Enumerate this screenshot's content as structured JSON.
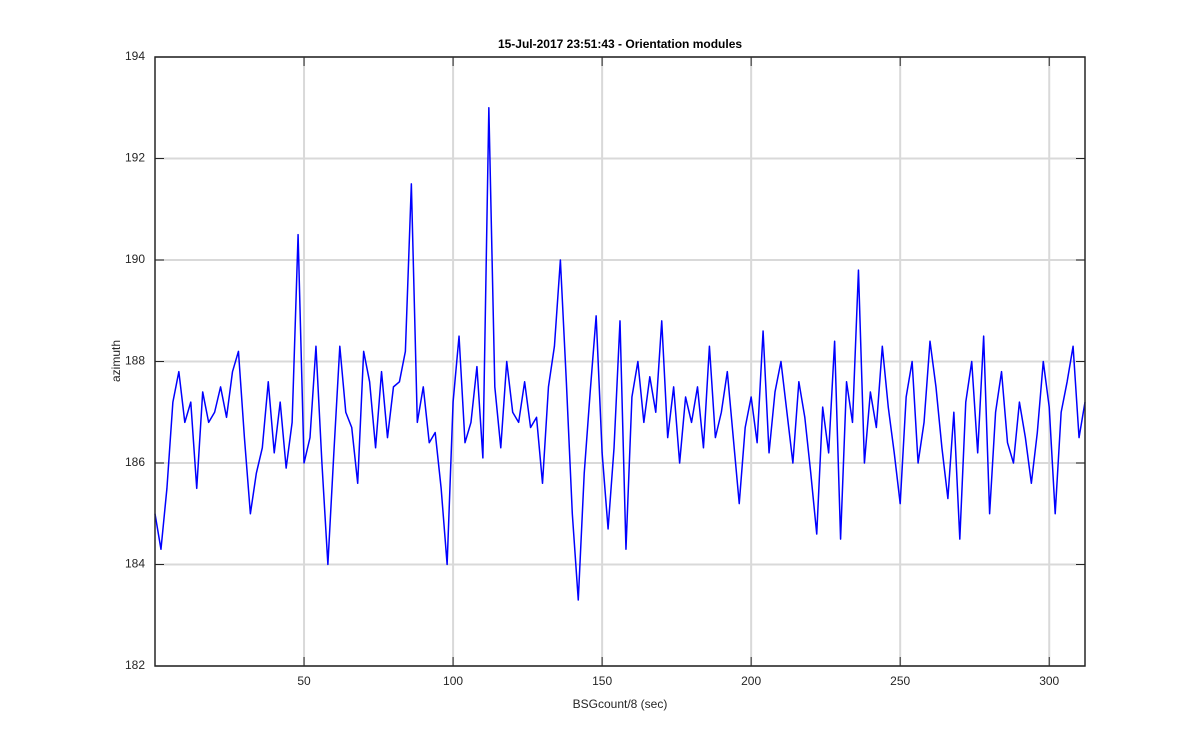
{
  "chart_data": {
    "type": "line",
    "title": "15-Jul-2017 23:51:43 - Orientation modules",
    "xlabel": "BSGcount/8 (sec)",
    "ylabel": "azimuth",
    "xlim": [
      0,
      312
    ],
    "ylim": [
      182,
      194
    ],
    "xticks": [
      50,
      100,
      150,
      200,
      250,
      300
    ],
    "yticks": [
      182,
      184,
      186,
      188,
      190,
      192,
      194
    ],
    "grid": true,
    "x": [
      0,
      2,
      4,
      6,
      8,
      10,
      12,
      14,
      16,
      18,
      20,
      22,
      24,
      26,
      28,
      30,
      32,
      34,
      36,
      38,
      40,
      42,
      44,
      46,
      48,
      50,
      52,
      54,
      56,
      58,
      60,
      62,
      64,
      66,
      68,
      70,
      72,
      74,
      76,
      78,
      80,
      82,
      84,
      86,
      88,
      90,
      92,
      94,
      96,
      98,
      100,
      102,
      104,
      106,
      108,
      110,
      112,
      114,
      116,
      118,
      120,
      122,
      124,
      126,
      128,
      130,
      132,
      134,
      136,
      138,
      140,
      142,
      144,
      146,
      148,
      150,
      152,
      154,
      156,
      158,
      160,
      162,
      164,
      166,
      168,
      170,
      172,
      174,
      176,
      178,
      180,
      182,
      184,
      186,
      188,
      190,
      192,
      194,
      196,
      198,
      200,
      202,
      204,
      206,
      208,
      210,
      212,
      214,
      216,
      218,
      220,
      222,
      224,
      226,
      228,
      230,
      232,
      234,
      236,
      238,
      240,
      242,
      244,
      246,
      248,
      250,
      252,
      254,
      256,
      258,
      260,
      262,
      264,
      266,
      268,
      270,
      272,
      274,
      276,
      278,
      280,
      282,
      284,
      286,
      288,
      290,
      292,
      294,
      296,
      298,
      300,
      302,
      304,
      306,
      308,
      310,
      312
    ],
    "series": [
      {
        "name": "azimuth",
        "color": "#0000ff",
        "values": [
          185.0,
          184.3,
          185.5,
          187.2,
          187.8,
          186.8,
          187.2,
          185.5,
          187.4,
          186.8,
          187.0,
          187.5,
          186.9,
          187.8,
          188.2,
          186.5,
          185.0,
          185.8,
          186.3,
          187.6,
          186.2,
          187.2,
          185.9,
          186.8,
          190.5,
          186.0,
          186.5,
          188.3,
          186.0,
          184.0,
          186.2,
          188.3,
          187.0,
          186.7,
          185.6,
          188.2,
          187.6,
          186.3,
          187.8,
          186.5,
          187.5,
          187.6,
          188.2,
          191.5,
          186.8,
          187.5,
          186.4,
          186.6,
          185.5,
          184.0,
          187.2,
          188.5,
          186.4,
          186.8,
          187.9,
          186.1,
          193.0,
          187.5,
          186.3,
          188.0,
          187.0,
          186.8,
          187.6,
          186.7,
          186.9,
          185.6,
          187.5,
          188.3,
          190.0,
          187.6,
          185.0,
          183.3,
          185.8,
          187.4,
          188.9,
          186.2,
          184.7,
          186.3,
          188.8,
          184.3,
          187.3,
          188.0,
          186.8,
          187.7,
          187.0,
          188.8,
          186.5,
          187.5,
          186.0,
          187.3,
          186.8,
          187.5,
          186.3,
          188.3,
          186.5,
          187.0,
          187.8,
          186.5,
          185.2,
          186.7,
          187.3,
          186.4,
          188.6,
          186.2,
          187.4,
          188.0,
          187.0,
          186.0,
          187.6,
          186.9,
          185.8,
          184.6,
          187.1,
          186.2,
          188.4,
          184.5,
          187.6,
          186.8,
          189.8,
          186.0,
          187.4,
          186.7,
          188.3,
          187.1,
          186.2,
          185.2,
          187.3,
          188.0,
          186.0,
          186.8,
          188.4,
          187.5,
          186.3,
          185.3,
          187.0,
          184.5,
          187.2,
          188.0,
          186.2,
          188.5,
          185.0,
          187.0,
          187.8,
          186.4,
          186.0,
          187.2,
          186.5,
          185.6,
          186.6,
          188.0,
          187.1,
          185.0,
          187.0,
          187.6,
          188.3,
          186.5,
          187.2
        ]
      }
    ]
  }
}
